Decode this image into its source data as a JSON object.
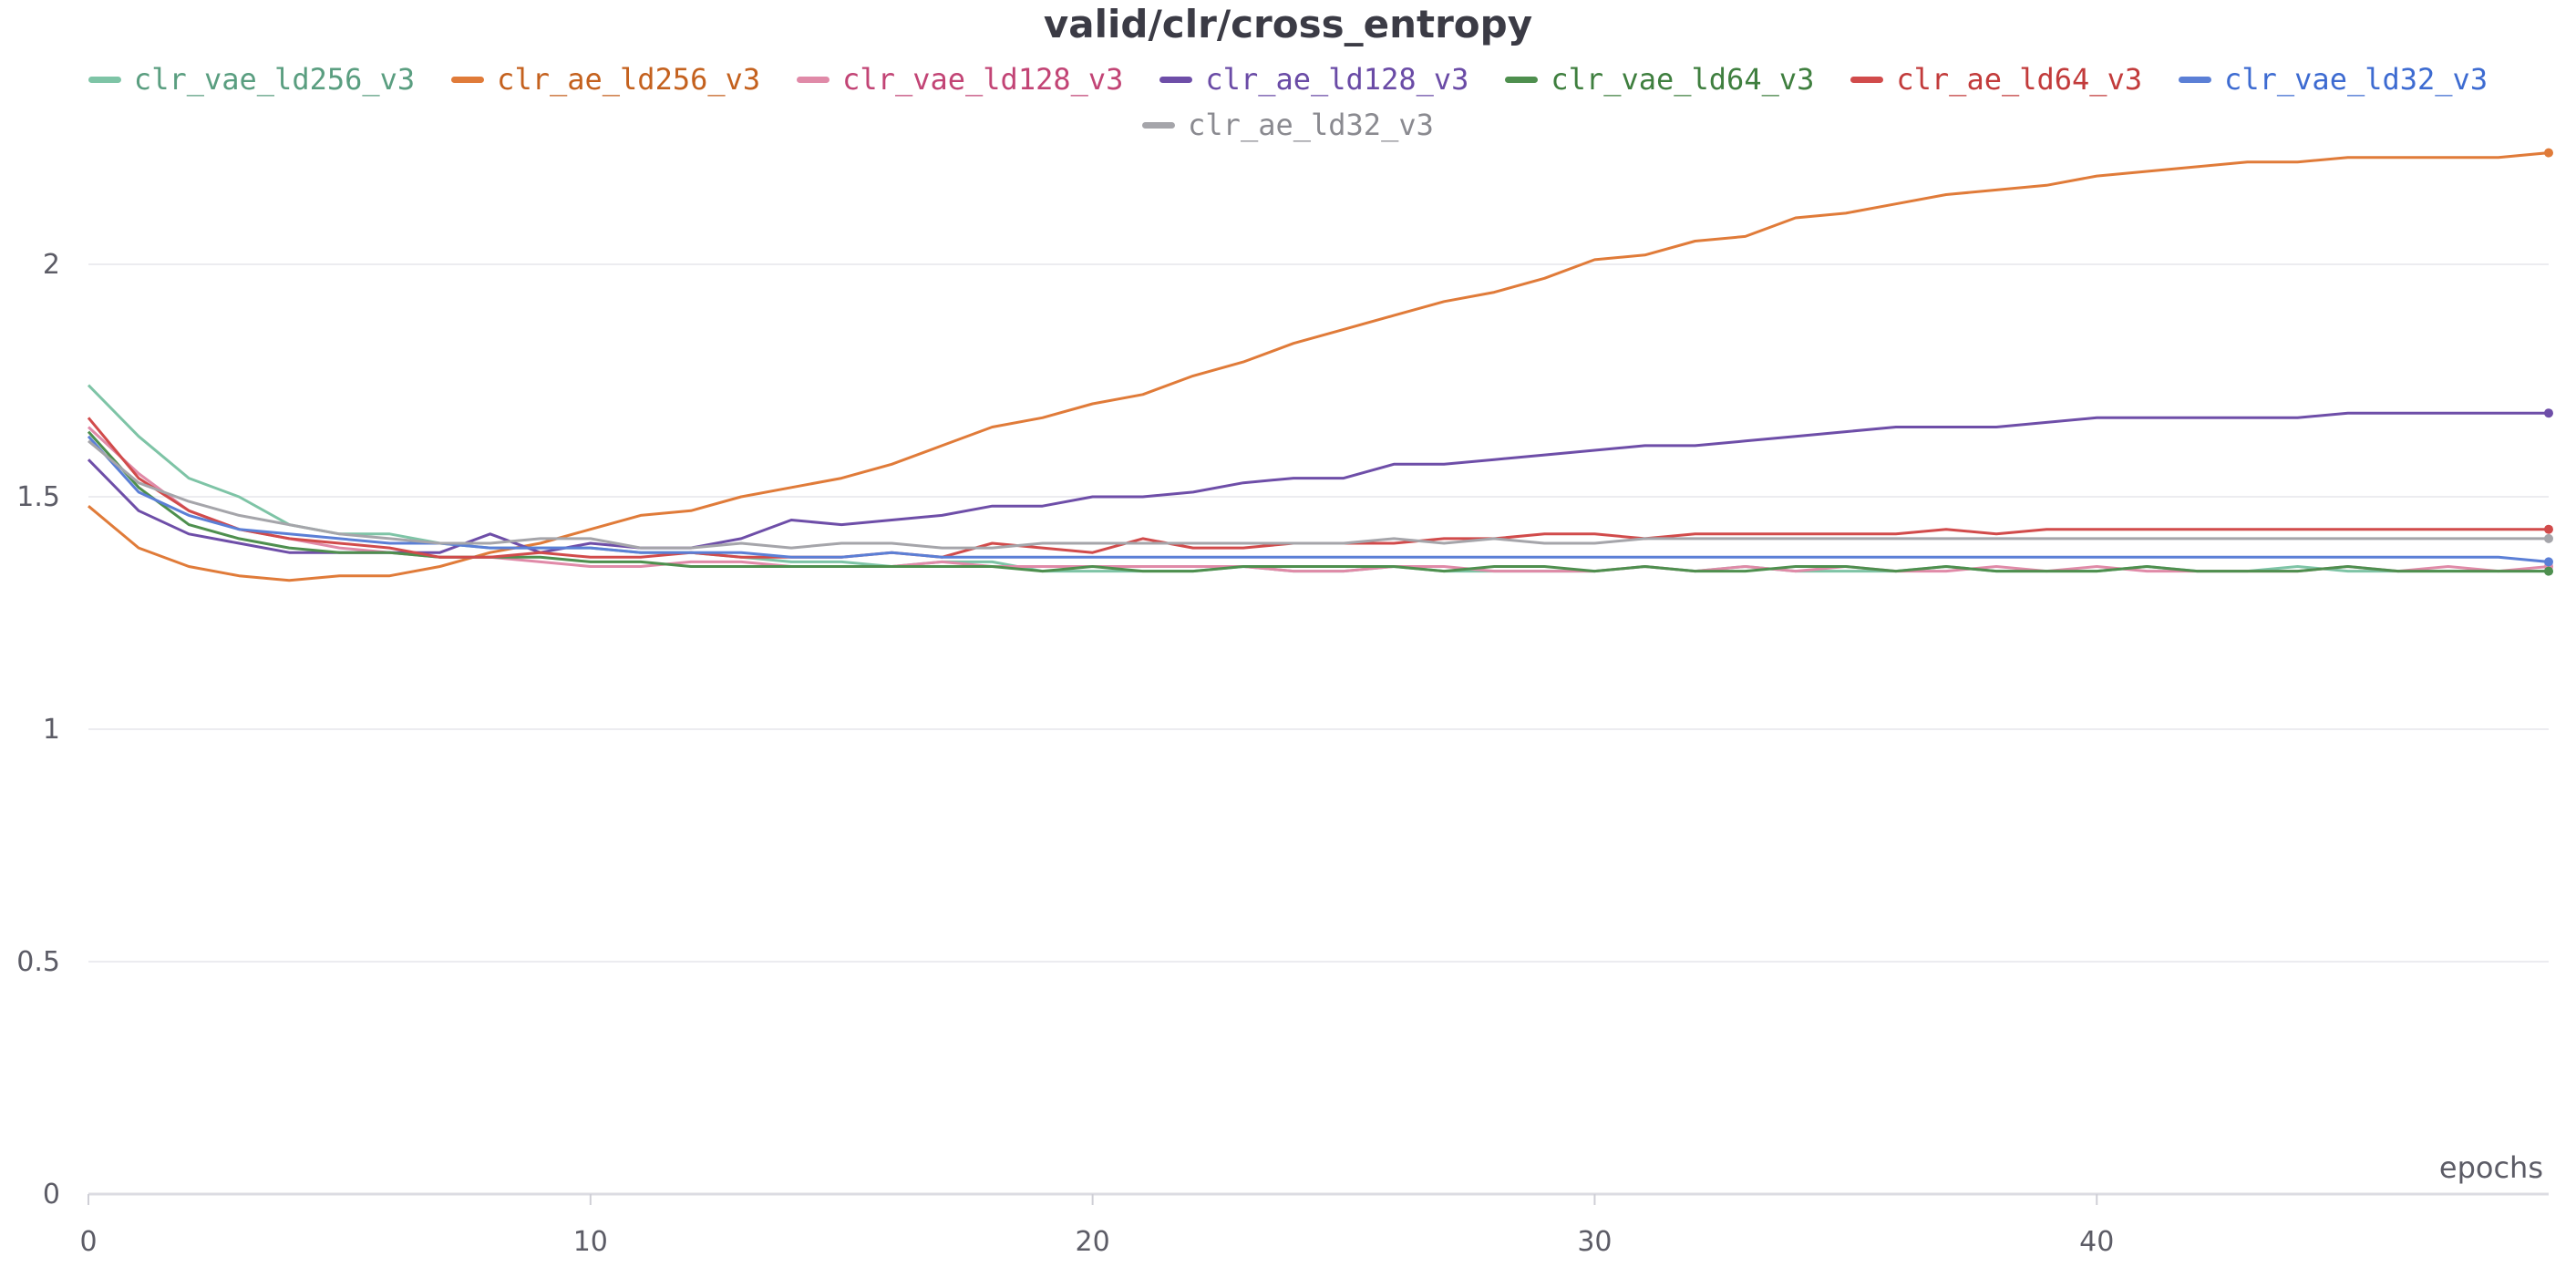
{
  "chart_data": {
    "type": "line",
    "title": "valid/clr/cross_entropy",
    "xlabel": "epochs",
    "ylabel": "",
    "xlim": [
      0,
      49
    ],
    "ylim": [
      0,
      2.25
    ],
    "x_ticks": [
      0,
      10,
      20,
      30,
      40
    ],
    "y_ticks": [
      0,
      0.5,
      1,
      1.5,
      2
    ],
    "y_tick_labels": [
      "0",
      "0.5",
      "1",
      "1.5",
      "2"
    ],
    "grid": true,
    "legend_position": "top",
    "x": [
      0,
      1,
      2,
      3,
      4,
      5,
      6,
      7,
      8,
      9,
      10,
      11,
      12,
      13,
      14,
      15,
      16,
      17,
      18,
      19,
      20,
      21,
      22,
      23,
      24,
      25,
      26,
      27,
      28,
      29,
      30,
      31,
      32,
      33,
      34,
      35,
      36,
      37,
      38,
      39,
      40,
      41,
      42,
      43,
      44,
      45,
      46,
      47,
      48,
      49
    ],
    "series": [
      {
        "name": "clr_vae_ld256_v3",
        "color": "#7ec4a6",
        "label_color": "#5a9e80",
        "values": [
          1.74,
          1.63,
          1.54,
          1.5,
          1.44,
          1.42,
          1.42,
          1.4,
          1.39,
          1.39,
          1.39,
          1.38,
          1.38,
          1.37,
          1.36,
          1.36,
          1.35,
          1.36,
          1.36,
          1.34,
          1.34,
          1.34,
          1.34,
          1.35,
          1.34,
          1.34,
          1.35,
          1.34,
          1.34,
          1.34,
          1.34,
          1.35,
          1.34,
          1.35,
          1.34,
          1.34,
          1.34,
          1.35,
          1.34,
          1.34,
          1.34,
          1.35,
          1.34,
          1.34,
          1.35,
          1.34,
          1.34,
          1.34,
          1.34,
          1.34
        ]
      },
      {
        "name": "clr_ae_ld256_v3",
        "color": "#e07b39",
        "label_color": "#c4611e",
        "values": [
          1.48,
          1.39,
          1.35,
          1.33,
          1.32,
          1.33,
          1.33,
          1.35,
          1.38,
          1.4,
          1.43,
          1.46,
          1.47,
          1.5,
          1.52,
          1.54,
          1.57,
          1.61,
          1.65,
          1.67,
          1.7,
          1.72,
          1.76,
          1.79,
          1.83,
          1.86,
          1.89,
          1.92,
          1.94,
          1.97,
          2.01,
          2.02,
          2.05,
          2.06,
          2.1,
          2.11,
          2.13,
          2.15,
          2.16,
          2.17,
          2.19,
          2.2,
          2.21,
          2.22,
          2.22,
          2.23,
          2.23,
          2.23,
          2.23,
          2.24
        ]
      },
      {
        "name": "clr_vae_ld128_v3",
        "color": "#e08aa8",
        "label_color": "#c24475",
        "values": [
          1.65,
          1.55,
          1.47,
          1.43,
          1.41,
          1.39,
          1.38,
          1.37,
          1.37,
          1.36,
          1.35,
          1.35,
          1.36,
          1.36,
          1.35,
          1.35,
          1.35,
          1.36,
          1.35,
          1.35,
          1.35,
          1.35,
          1.35,
          1.35,
          1.34,
          1.34,
          1.35,
          1.35,
          1.34,
          1.34,
          1.34,
          1.35,
          1.34,
          1.35,
          1.34,
          1.35,
          1.34,
          1.34,
          1.35,
          1.34,
          1.35,
          1.34,
          1.34,
          1.34,
          1.34,
          1.35,
          1.34,
          1.35,
          1.34,
          1.35
        ]
      },
      {
        "name": "clr_ae_ld128_v3",
        "color": "#6e4ea8",
        "label_color": "#6a4ba6",
        "values": [
          1.58,
          1.47,
          1.42,
          1.4,
          1.38,
          1.38,
          1.38,
          1.38,
          1.42,
          1.38,
          1.4,
          1.39,
          1.39,
          1.41,
          1.45,
          1.44,
          1.45,
          1.46,
          1.48,
          1.48,
          1.5,
          1.5,
          1.51,
          1.53,
          1.54,
          1.54,
          1.57,
          1.57,
          1.58,
          1.59,
          1.6,
          1.61,
          1.61,
          1.62,
          1.63,
          1.64,
          1.65,
          1.65,
          1.65,
          1.66,
          1.67,
          1.67,
          1.67,
          1.67,
          1.67,
          1.68,
          1.68,
          1.68,
          1.68,
          1.68
        ]
      },
      {
        "name": "clr_vae_ld64_v3",
        "color": "#4e8f4e",
        "label_color": "#3f7f3f",
        "values": [
          1.64,
          1.52,
          1.44,
          1.41,
          1.39,
          1.38,
          1.38,
          1.37,
          1.37,
          1.37,
          1.36,
          1.36,
          1.35,
          1.35,
          1.35,
          1.35,
          1.35,
          1.35,
          1.35,
          1.34,
          1.35,
          1.34,
          1.34,
          1.35,
          1.35,
          1.35,
          1.35,
          1.34,
          1.35,
          1.35,
          1.34,
          1.35,
          1.34,
          1.34,
          1.35,
          1.35,
          1.34,
          1.35,
          1.34,
          1.34,
          1.34,
          1.35,
          1.34,
          1.34,
          1.34,
          1.35,
          1.34,
          1.34,
          1.34,
          1.34
        ]
      },
      {
        "name": "clr_ae_ld64_v3",
        "color": "#d14b4b",
        "label_color": "#c23b3b",
        "values": [
          1.67,
          1.54,
          1.47,
          1.43,
          1.41,
          1.4,
          1.39,
          1.37,
          1.37,
          1.38,
          1.37,
          1.37,
          1.38,
          1.37,
          1.37,
          1.37,
          1.38,
          1.37,
          1.4,
          1.39,
          1.38,
          1.41,
          1.39,
          1.39,
          1.4,
          1.4,
          1.4,
          1.41,
          1.41,
          1.42,
          1.42,
          1.41,
          1.42,
          1.42,
          1.42,
          1.42,
          1.42,
          1.43,
          1.42,
          1.43,
          1.43,
          1.43,
          1.43,
          1.43,
          1.43,
          1.43,
          1.43,
          1.43,
          1.43,
          1.43
        ]
      },
      {
        "name": "clr_vae_ld32_v3",
        "color": "#5b7fd6",
        "label_color": "#3d6bd1",
        "values": [
          1.63,
          1.51,
          1.46,
          1.43,
          1.42,
          1.41,
          1.4,
          1.4,
          1.39,
          1.39,
          1.39,
          1.38,
          1.38,
          1.38,
          1.37,
          1.37,
          1.38,
          1.37,
          1.37,
          1.37,
          1.37,
          1.37,
          1.37,
          1.37,
          1.37,
          1.37,
          1.37,
          1.37,
          1.37,
          1.37,
          1.37,
          1.37,
          1.37,
          1.37,
          1.37,
          1.37,
          1.37,
          1.37,
          1.37,
          1.37,
          1.37,
          1.37,
          1.37,
          1.37,
          1.37,
          1.37,
          1.37,
          1.37,
          1.37,
          1.36
        ]
      },
      {
        "name": "clr_ae_ld32_v3",
        "color": "#a5a5aa",
        "label_color": "#8a8a90",
        "values": [
          1.62,
          1.53,
          1.49,
          1.46,
          1.44,
          1.42,
          1.41,
          1.4,
          1.4,
          1.41,
          1.41,
          1.39,
          1.39,
          1.4,
          1.39,
          1.4,
          1.4,
          1.39,
          1.39,
          1.4,
          1.4,
          1.4,
          1.4,
          1.4,
          1.4,
          1.4,
          1.41,
          1.4,
          1.41,
          1.4,
          1.4,
          1.41,
          1.41,
          1.41,
          1.41,
          1.41,
          1.41,
          1.41,
          1.41,
          1.41,
          1.41,
          1.41,
          1.41,
          1.41,
          1.41,
          1.41,
          1.41,
          1.41,
          1.41,
          1.41
        ]
      }
    ]
  }
}
